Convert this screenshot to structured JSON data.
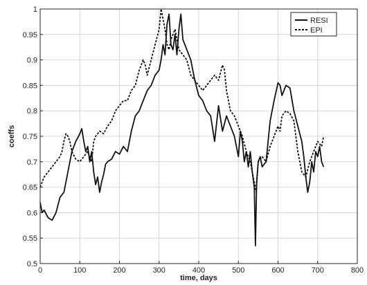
{
  "chart_data": {
    "type": "line",
    "title": "",
    "xlabel": "time, days",
    "ylabel": "coeffs",
    "xlim": [
      0,
      800
    ],
    "ylim": [
      0.5,
      1.0
    ],
    "xticks": [
      0,
      100,
      200,
      300,
      400,
      500,
      600,
      700,
      800
    ],
    "yticks": [
      0.5,
      0.55,
      0.6,
      0.65,
      0.7,
      0.75,
      0.8,
      0.85,
      0.9,
      0.95,
      1.0
    ],
    "ytick_labels": [
      "0.5",
      "0.55",
      "0.6",
      "0.65",
      "0.7",
      "0.75",
      "0.8",
      "0.85",
      "0.9",
      "0.95",
      "1"
    ],
    "grid": true,
    "legend": "top-right",
    "series": [
      {
        "name": "RESI",
        "style": "solid",
        "color": "#111111",
        "x": [
          0,
          5,
          10,
          20,
          30,
          40,
          50,
          60,
          70,
          80,
          90,
          100,
          105,
          110,
          115,
          120,
          125,
          130,
          135,
          140,
          145,
          150,
          155,
          160,
          165,
          170,
          180,
          190,
          200,
          210,
          220,
          230,
          240,
          250,
          260,
          270,
          280,
          290,
          300,
          305,
          310,
          315,
          320,
          325,
          330,
          335,
          340,
          345,
          350,
          355,
          360,
          365,
          370,
          380,
          390,
          400,
          410,
          420,
          430,
          440,
          450,
          460,
          470,
          480,
          490,
          500,
          505,
          510,
          515,
          520,
          525,
          530,
          535,
          540,
          543,
          546,
          550,
          555,
          560,
          570,
          580,
          590,
          600,
          605,
          610,
          620,
          630,
          640,
          650,
          660,
          665,
          670,
          675,
          680,
          685,
          690,
          695,
          700,
          705,
          710,
          715
        ],
        "values": [
          0.62,
          0.6,
          0.605,
          0.59,
          0.585,
          0.6,
          0.63,
          0.64,
          0.68,
          0.72,
          0.74,
          0.755,
          0.765,
          0.74,
          0.72,
          0.73,
          0.7,
          0.72,
          0.68,
          0.655,
          0.67,
          0.64,
          0.66,
          0.675,
          0.695,
          0.7,
          0.705,
          0.72,
          0.715,
          0.73,
          0.72,
          0.76,
          0.79,
          0.8,
          0.82,
          0.84,
          0.85,
          0.87,
          0.88,
          0.9,
          0.93,
          0.91,
          0.97,
          0.99,
          0.93,
          0.92,
          0.95,
          0.91,
          0.96,
          0.99,
          0.94,
          0.93,
          0.92,
          0.9,
          0.86,
          0.83,
          0.82,
          0.8,
          0.79,
          0.74,
          0.81,
          0.76,
          0.79,
          0.77,
          0.75,
          0.71,
          0.76,
          0.74,
          0.7,
          0.72,
          0.69,
          0.72,
          0.68,
          0.65,
          0.535,
          0.66,
          0.7,
          0.71,
          0.69,
          0.7,
          0.78,
          0.82,
          0.855,
          0.85,
          0.83,
          0.85,
          0.845,
          0.8,
          0.77,
          0.74,
          0.71,
          0.67,
          0.64,
          0.66,
          0.7,
          0.68,
          0.72,
          0.71,
          0.73,
          0.7,
          0.69
        ]
      },
      {
        "name": "EPI",
        "style": "dashed",
        "color": "#111111",
        "x": [
          0,
          5,
          10,
          20,
          30,
          40,
          50,
          55,
          60,
          65,
          70,
          75,
          80,
          90,
          100,
          110,
          120,
          130,
          135,
          140,
          150,
          160,
          170,
          180,
          190,
          200,
          210,
          220,
          230,
          240,
          250,
          260,
          265,
          270,
          280,
          290,
          300,
          305,
          310,
          315,
          320,
          325,
          330,
          340,
          350,
          360,
          370,
          380,
          390,
          400,
          410,
          420,
          430,
          440,
          450,
          460,
          465,
          470,
          475,
          480,
          490,
          500,
          510,
          520,
          530,
          540,
          545,
          550,
          560,
          570,
          580,
          590,
          600,
          605,
          610,
          620,
          630,
          640,
          650,
          660,
          670,
          680,
          690,
          700,
          710,
          715
        ],
        "values": [
          0.65,
          0.66,
          0.67,
          0.68,
          0.69,
          0.7,
          0.71,
          0.72,
          0.74,
          0.755,
          0.75,
          0.74,
          0.72,
          0.705,
          0.7,
          0.71,
          0.72,
          0.7,
          0.74,
          0.75,
          0.76,
          0.755,
          0.77,
          0.78,
          0.8,
          0.81,
          0.82,
          0.82,
          0.84,
          0.85,
          0.88,
          0.9,
          0.89,
          0.87,
          0.9,
          0.93,
          0.96,
          1.0,
          0.98,
          0.96,
          0.93,
          0.92,
          0.94,
          0.96,
          0.92,
          0.91,
          0.9,
          0.87,
          0.86,
          0.85,
          0.84,
          0.85,
          0.86,
          0.87,
          0.86,
          0.89,
          0.88,
          0.84,
          0.82,
          0.8,
          0.79,
          0.77,
          0.75,
          0.72,
          0.7,
          0.66,
          0.64,
          0.7,
          0.71,
          0.7,
          0.73,
          0.75,
          0.77,
          0.76,
          0.79,
          0.8,
          0.795,
          0.78,
          0.72,
          0.68,
          0.67,
          0.7,
          0.72,
          0.74,
          0.73,
          0.75
        ]
      }
    ]
  }
}
